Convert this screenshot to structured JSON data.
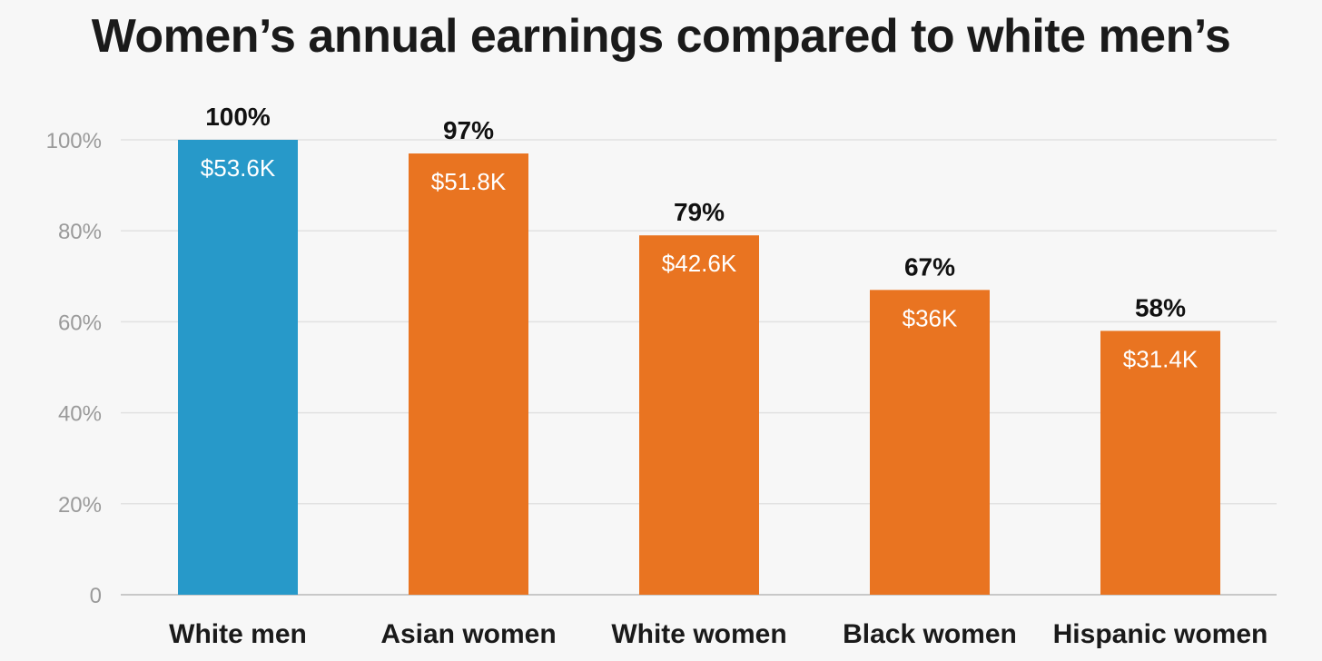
{
  "chart_data": {
    "type": "bar",
    "title": "Women’s annual earnings compared to white men’s",
    "categories": [
      "White men",
      "Asian women",
      "White women",
      "Black women",
      "Hispanic women"
    ],
    "values": [
      100,
      97,
      79,
      67,
      58
    ],
    "value_labels": [
      "100%",
      "97%",
      "79%",
      "67%",
      "58%"
    ],
    "earnings_labels": [
      "$53.6K",
      "$51.8K",
      "$42.6K",
      "$36K",
      "$31.4K"
    ],
    "bar_colors": [
      "#2799c9",
      "#e97421",
      "#e97421",
      "#e97421",
      "#e97421"
    ],
    "ylim": [
      0,
      100
    ],
    "yticks": [
      0,
      20,
      40,
      60,
      80,
      100
    ],
    "ytick_labels": [
      "0",
      "20%",
      "40%",
      "60%",
      "80%",
      "100%"
    ],
    "xlabel": "",
    "ylabel": "",
    "grid": true,
    "legend": "none"
  }
}
